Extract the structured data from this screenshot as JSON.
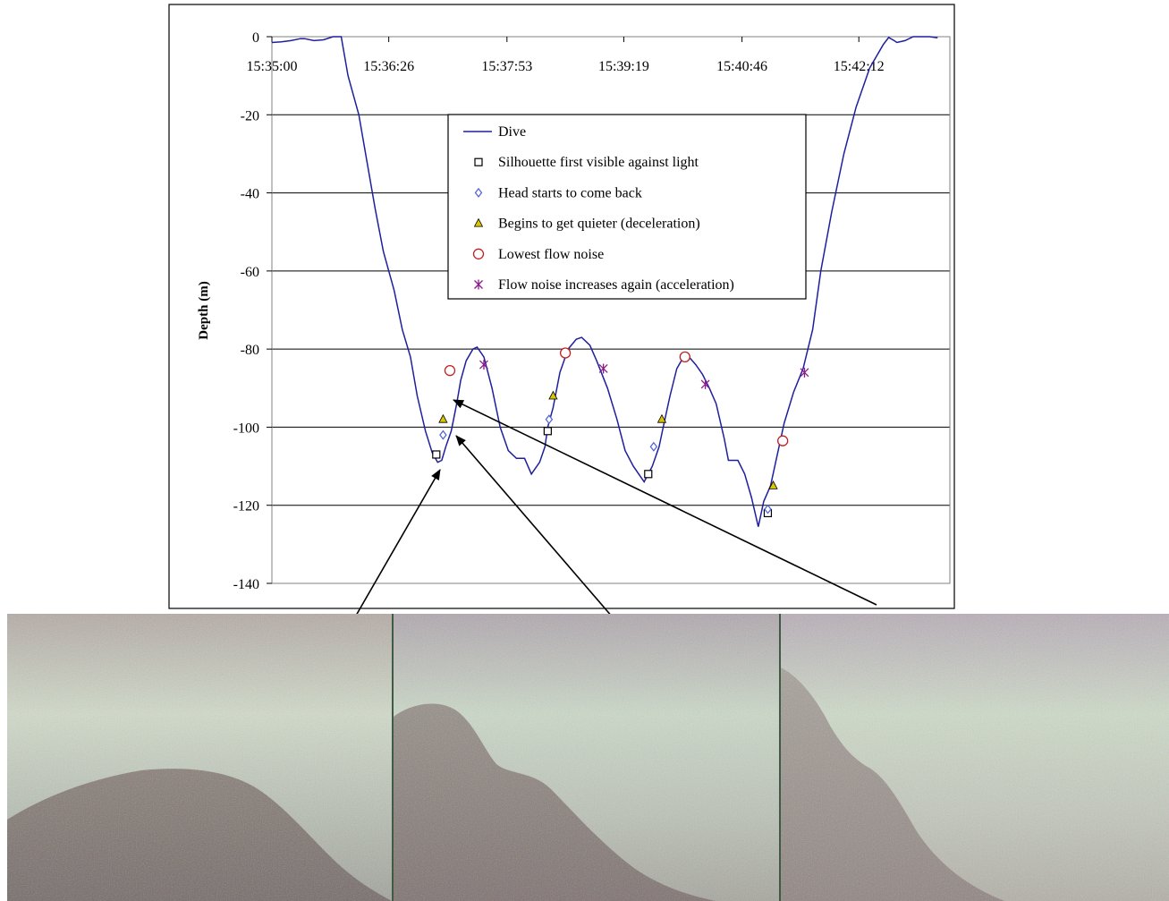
{
  "chart_data": {
    "type": "line",
    "ylabel": "Depth (m)",
    "xlabel": "",
    "x_tick_labels": [
      "15:35:00",
      "15:36:26",
      "15:37:53",
      "15:39:19",
      "15:40:46",
      "15:42:12"
    ],
    "x_range": [
      "15:35:00",
      "15:43:19"
    ],
    "y_ticks": [
      0,
      -20,
      -40,
      -60,
      -80,
      -100,
      -120,
      -140
    ],
    "y_tick_labels": [
      "0",
      "-20",
      "-40",
      "-60",
      "-80",
      "-100",
      "-120",
      "-140"
    ],
    "ylim": [
      -140,
      0
    ],
    "grid": "horizontal",
    "legend_position": "top-center",
    "legend": [
      "Dive",
      "Silhouette first visible against light",
      "Head starts to come back",
      "Begins to get quieter (deceleration)",
      "Lowest flow noise",
      "Flow noise increases again (acceleration)"
    ],
    "colors": {
      "dive": "#1f1f9e",
      "silhouette": "#000000",
      "head": "#4a5fd6",
      "quieter": "#d9c600",
      "lowest": "#c02020",
      "increases": "#8b1a8b"
    },
    "series": [
      {
        "name": "Dive",
        "points": [
          [
            "15:35:00",
            -1.5
          ],
          [
            "15:35:07",
            -1.3
          ],
          [
            "15:35:14",
            -1.0
          ],
          [
            "15:35:21",
            -0.5
          ],
          [
            "15:35:24",
            -0.5
          ],
          [
            "15:35:31",
            -1.0
          ],
          [
            "15:35:38",
            -0.8
          ],
          [
            "15:35:45",
            0
          ],
          [
            "15:35:51",
            0
          ],
          [
            "15:35:56",
            -10
          ],
          [
            "15:36:04",
            -20
          ],
          [
            "15:36:10",
            -32
          ],
          [
            "15:36:16",
            -44
          ],
          [
            "15:36:22",
            -55
          ],
          [
            "15:36:30",
            -65
          ],
          [
            "15:36:36",
            -75
          ],
          [
            "15:36:42",
            -82
          ],
          [
            "15:36:47",
            -92
          ],
          [
            "15:36:53",
            -101
          ],
          [
            "15:36:58",
            -106.5
          ],
          [
            "15:37:02",
            -109
          ],
          [
            "15:37:05",
            -108.5
          ],
          [
            "15:37:08",
            -105
          ],
          [
            "15:37:12",
            -101
          ],
          [
            "15:37:16",
            -94
          ],
          [
            "15:37:19",
            -88
          ],
          [
            "15:37:23",
            -83
          ],
          [
            "15:37:28",
            -80
          ],
          [
            "15:37:31",
            -79.5
          ],
          [
            "15:37:36",
            -82
          ],
          [
            "15:37:42",
            -90
          ],
          [
            "15:37:48",
            -100
          ],
          [
            "15:37:54",
            -106
          ],
          [
            "15:38:00",
            -108
          ],
          [
            "15:38:06",
            -108
          ],
          [
            "15:38:11",
            -112
          ],
          [
            "15:38:17",
            -109
          ],
          [
            "15:38:21",
            -105
          ],
          [
            "15:38:23",
            -100
          ],
          [
            "15:38:27",
            -95
          ],
          [
            "15:38:32",
            -86
          ],
          [
            "15:38:38",
            -80
          ],
          [
            "15:38:44",
            -77.5
          ],
          [
            "15:38:48",
            -77
          ],
          [
            "15:38:54",
            -79
          ],
          [
            "15:38:59",
            -83
          ],
          [
            "15:39:07",
            -90
          ],
          [
            "15:39:14",
            -98
          ],
          [
            "15:39:20",
            -106
          ],
          [
            "15:39:26",
            -110
          ],
          [
            "15:39:34",
            -114
          ],
          [
            "15:39:40",
            -110
          ],
          [
            "15:39:45",
            -105
          ],
          [
            "15:39:48",
            -100
          ],
          [
            "15:39:53",
            -92
          ],
          [
            "15:39:58",
            -85
          ],
          [
            "15:40:03",
            -82
          ],
          [
            "15:40:07",
            -82
          ],
          [
            "15:40:12",
            -84
          ],
          [
            "15:40:17",
            -86.5
          ],
          [
            "15:40:22",
            -90
          ],
          [
            "15:40:27",
            -94
          ],
          [
            "15:40:33",
            -103
          ],
          [
            "15:40:36",
            -108.5
          ],
          [
            "15:40:43",
            -108.5
          ],
          [
            "15:40:48",
            -112
          ],
          [
            "15:40:53",
            -118
          ],
          [
            "15:40:58",
            -125.5
          ],
          [
            "15:41:02",
            -119
          ],
          [
            "15:41:07",
            -115
          ],
          [
            "15:41:12",
            -107
          ],
          [
            "15:41:17",
            -99
          ],
          [
            "15:41:24",
            -91
          ],
          [
            "15:41:31",
            -85
          ],
          [
            "15:41:38",
            -75
          ],
          [
            "15:41:44",
            -60
          ],
          [
            "15:41:52",
            -45
          ],
          [
            "15:42:01",
            -30
          ],
          [
            "15:42:10",
            -18
          ],
          [
            "15:42:20",
            -8
          ],
          [
            "15:42:30",
            -2
          ],
          [
            "15:42:34",
            -0.2
          ],
          [
            "15:42:38",
            -1
          ],
          [
            "15:42:40",
            -1.5
          ],
          [
            "15:42:46",
            -1
          ],
          [
            "15:42:52",
            0
          ],
          [
            "15:43:04",
            0
          ],
          [
            "15:43:10",
            -0.3
          ]
        ]
      },
      {
        "name": "Silhouette first visible against light",
        "points": [
          [
            "15:37:01",
            -107
          ],
          [
            "15:38:23",
            -101
          ],
          [
            "15:39:37",
            -112
          ],
          [
            "15:41:05",
            -122
          ]
        ]
      },
      {
        "name": "Head starts to come back",
        "points": [
          [
            "15:37:06",
            -102
          ],
          [
            "15:38:24",
            -98
          ],
          [
            "15:39:41",
            -105
          ],
          [
            "15:41:05",
            -121
          ]
        ]
      },
      {
        "name": "Begins to get quieter (deceleration)",
        "points": [
          [
            "15:37:06",
            -98
          ],
          [
            "15:38:27",
            -92
          ],
          [
            "15:39:47",
            -98
          ],
          [
            "15:41:09",
            -115
          ]
        ]
      },
      {
        "name": "Lowest flow noise",
        "points": [
          [
            "15:37:11",
            -85.5
          ],
          [
            "15:38:36",
            -81
          ],
          [
            "15:40:04",
            -82
          ],
          [
            "15:41:16",
            -103.5
          ]
        ]
      },
      {
        "name": "Flow noise increases again (acceleration)",
        "points": [
          [
            "15:37:36",
            -84
          ],
          [
            "15:39:04",
            -85
          ],
          [
            "15:40:19",
            -89
          ],
          [
            "15:41:32",
            -86
          ]
        ]
      }
    ]
  },
  "photos": {
    "count": 3,
    "colors": {
      "water_light": "#c9d3c2",
      "water_mid": "#a9b0a5",
      "silhouette": "#8b7f7e",
      "noise_tint": "#b7a4b6"
    }
  }
}
